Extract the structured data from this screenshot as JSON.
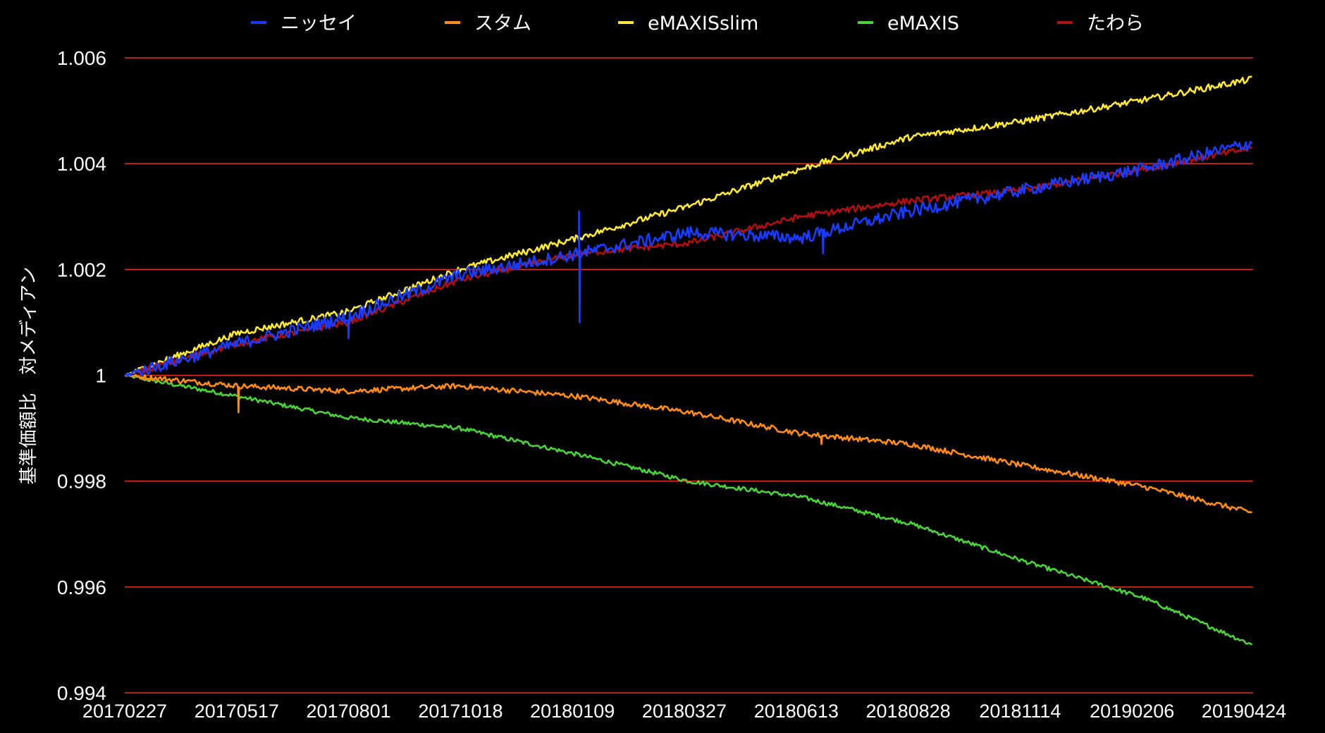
{
  "chart_data": {
    "type": "line",
    "title": "",
    "xlabel": "",
    "ylabel": "基準価額比　対メディアン",
    "ylim": [
      0.994,
      1.006
    ],
    "yticks": [
      {
        "value": 0.994,
        "label": "0.994"
      },
      {
        "value": 0.996,
        "label": "0.996"
      },
      {
        "value": 0.998,
        "label": "0.998"
      },
      {
        "value": 1.0,
        "label": "1"
      },
      {
        "value": 1.002,
        "label": "1.002"
      },
      {
        "value": 1.004,
        "label": "1.004"
      },
      {
        "value": 1.006,
        "label": "1.006"
      }
    ],
    "xticks": [
      "20170227",
      "20170517",
      "20170801",
      "20171018",
      "20180109",
      "20180327",
      "20180613",
      "20180828",
      "20181114",
      "20190206",
      "20190424"
    ],
    "grid": true,
    "grid_color": "#e8321a",
    "background": "#000000",
    "legend_position": "top",
    "series": [
      {
        "name": "ニッセイ",
        "color": "#1a3cff",
        "points": [
          [
            "20170227",
            1.0
          ],
          [
            "20170517",
            1.0006
          ],
          [
            "20170801",
            1.0011
          ],
          [
            "20171018",
            1.0019
          ],
          [
            "20180109",
            1.0023
          ],
          [
            "20180327",
            1.0027
          ],
          [
            "20180613",
            1.0026
          ],
          [
            "20180828",
            1.0031
          ],
          [
            "20181114",
            1.0035
          ],
          [
            "20190206",
            1.0039
          ],
          [
            "20190424",
            1.0044
          ]
        ],
        "spikes": [
          {
            "x": "20180110",
            "high": 1.0031,
            "low": 1.001
          },
          {
            "x": "20180628",
            "low": 1.0023
          },
          {
            "x": "20170801",
            "low": 1.0007
          }
        ]
      },
      {
        "name": "スタム",
        "color": "#ff8c1a",
        "points": [
          [
            "20170227",
            1.0
          ],
          [
            "20170517",
            0.9998
          ],
          [
            "20170801",
            0.9997
          ],
          [
            "20171018",
            0.9998
          ],
          [
            "20180109",
            0.9996
          ],
          [
            "20180327",
            0.9993
          ],
          [
            "20180613",
            0.9989
          ],
          [
            "20180828",
            0.9987
          ],
          [
            "20181114",
            0.9983
          ],
          [
            "20190206",
            0.9979
          ],
          [
            "20190424",
            0.9974
          ]
        ],
        "spikes": [
          {
            "x": "20170517",
            "low": 0.9993
          },
          {
            "x": "20180627",
            "low": 0.9987
          }
        ]
      },
      {
        "name": "eMAXISslim",
        "color": "#ffe83a",
        "points": [
          [
            "20170227",
            1.0
          ],
          [
            "20170517",
            1.0008
          ],
          [
            "20170801",
            1.0012
          ],
          [
            "20171018",
            1.002
          ],
          [
            "20180109",
            1.0026
          ],
          [
            "20180327",
            1.0032
          ],
          [
            "20180613",
            1.0039
          ],
          [
            "20180828",
            1.0045
          ],
          [
            "20181114",
            1.0048
          ],
          [
            "20190206",
            1.0052
          ],
          [
            "20190424",
            1.0056
          ]
        ]
      },
      {
        "name": "eMAXIS",
        "color": "#4ad43a",
        "points": [
          [
            "20170227",
            1.0
          ],
          [
            "20170517",
            0.9996
          ],
          [
            "20170801",
            0.9992
          ],
          [
            "20171018",
            0.999
          ],
          [
            "20180109",
            0.9985
          ],
          [
            "20180327",
            0.998
          ],
          [
            "20180613",
            0.9977
          ],
          [
            "20180828",
            0.9972
          ],
          [
            "20181114",
            0.9965
          ],
          [
            "20190206",
            0.9958
          ],
          [
            "20190424",
            0.9949
          ]
        ]
      },
      {
        "name": "たわら",
        "color": "#b01010",
        "points": [
          [
            "20170227",
            1.0
          ],
          [
            "20170517",
            1.0006
          ],
          [
            "20170801",
            1.001
          ],
          [
            "20171018",
            1.0018
          ],
          [
            "20180109",
            1.0023
          ],
          [
            "20180327",
            1.0025
          ],
          [
            "20180613",
            1.003
          ],
          [
            "20180828",
            1.0033
          ],
          [
            "20181114",
            1.0035
          ],
          [
            "20190206",
            1.0039
          ],
          [
            "20190424",
            1.0043
          ]
        ]
      }
    ]
  }
}
